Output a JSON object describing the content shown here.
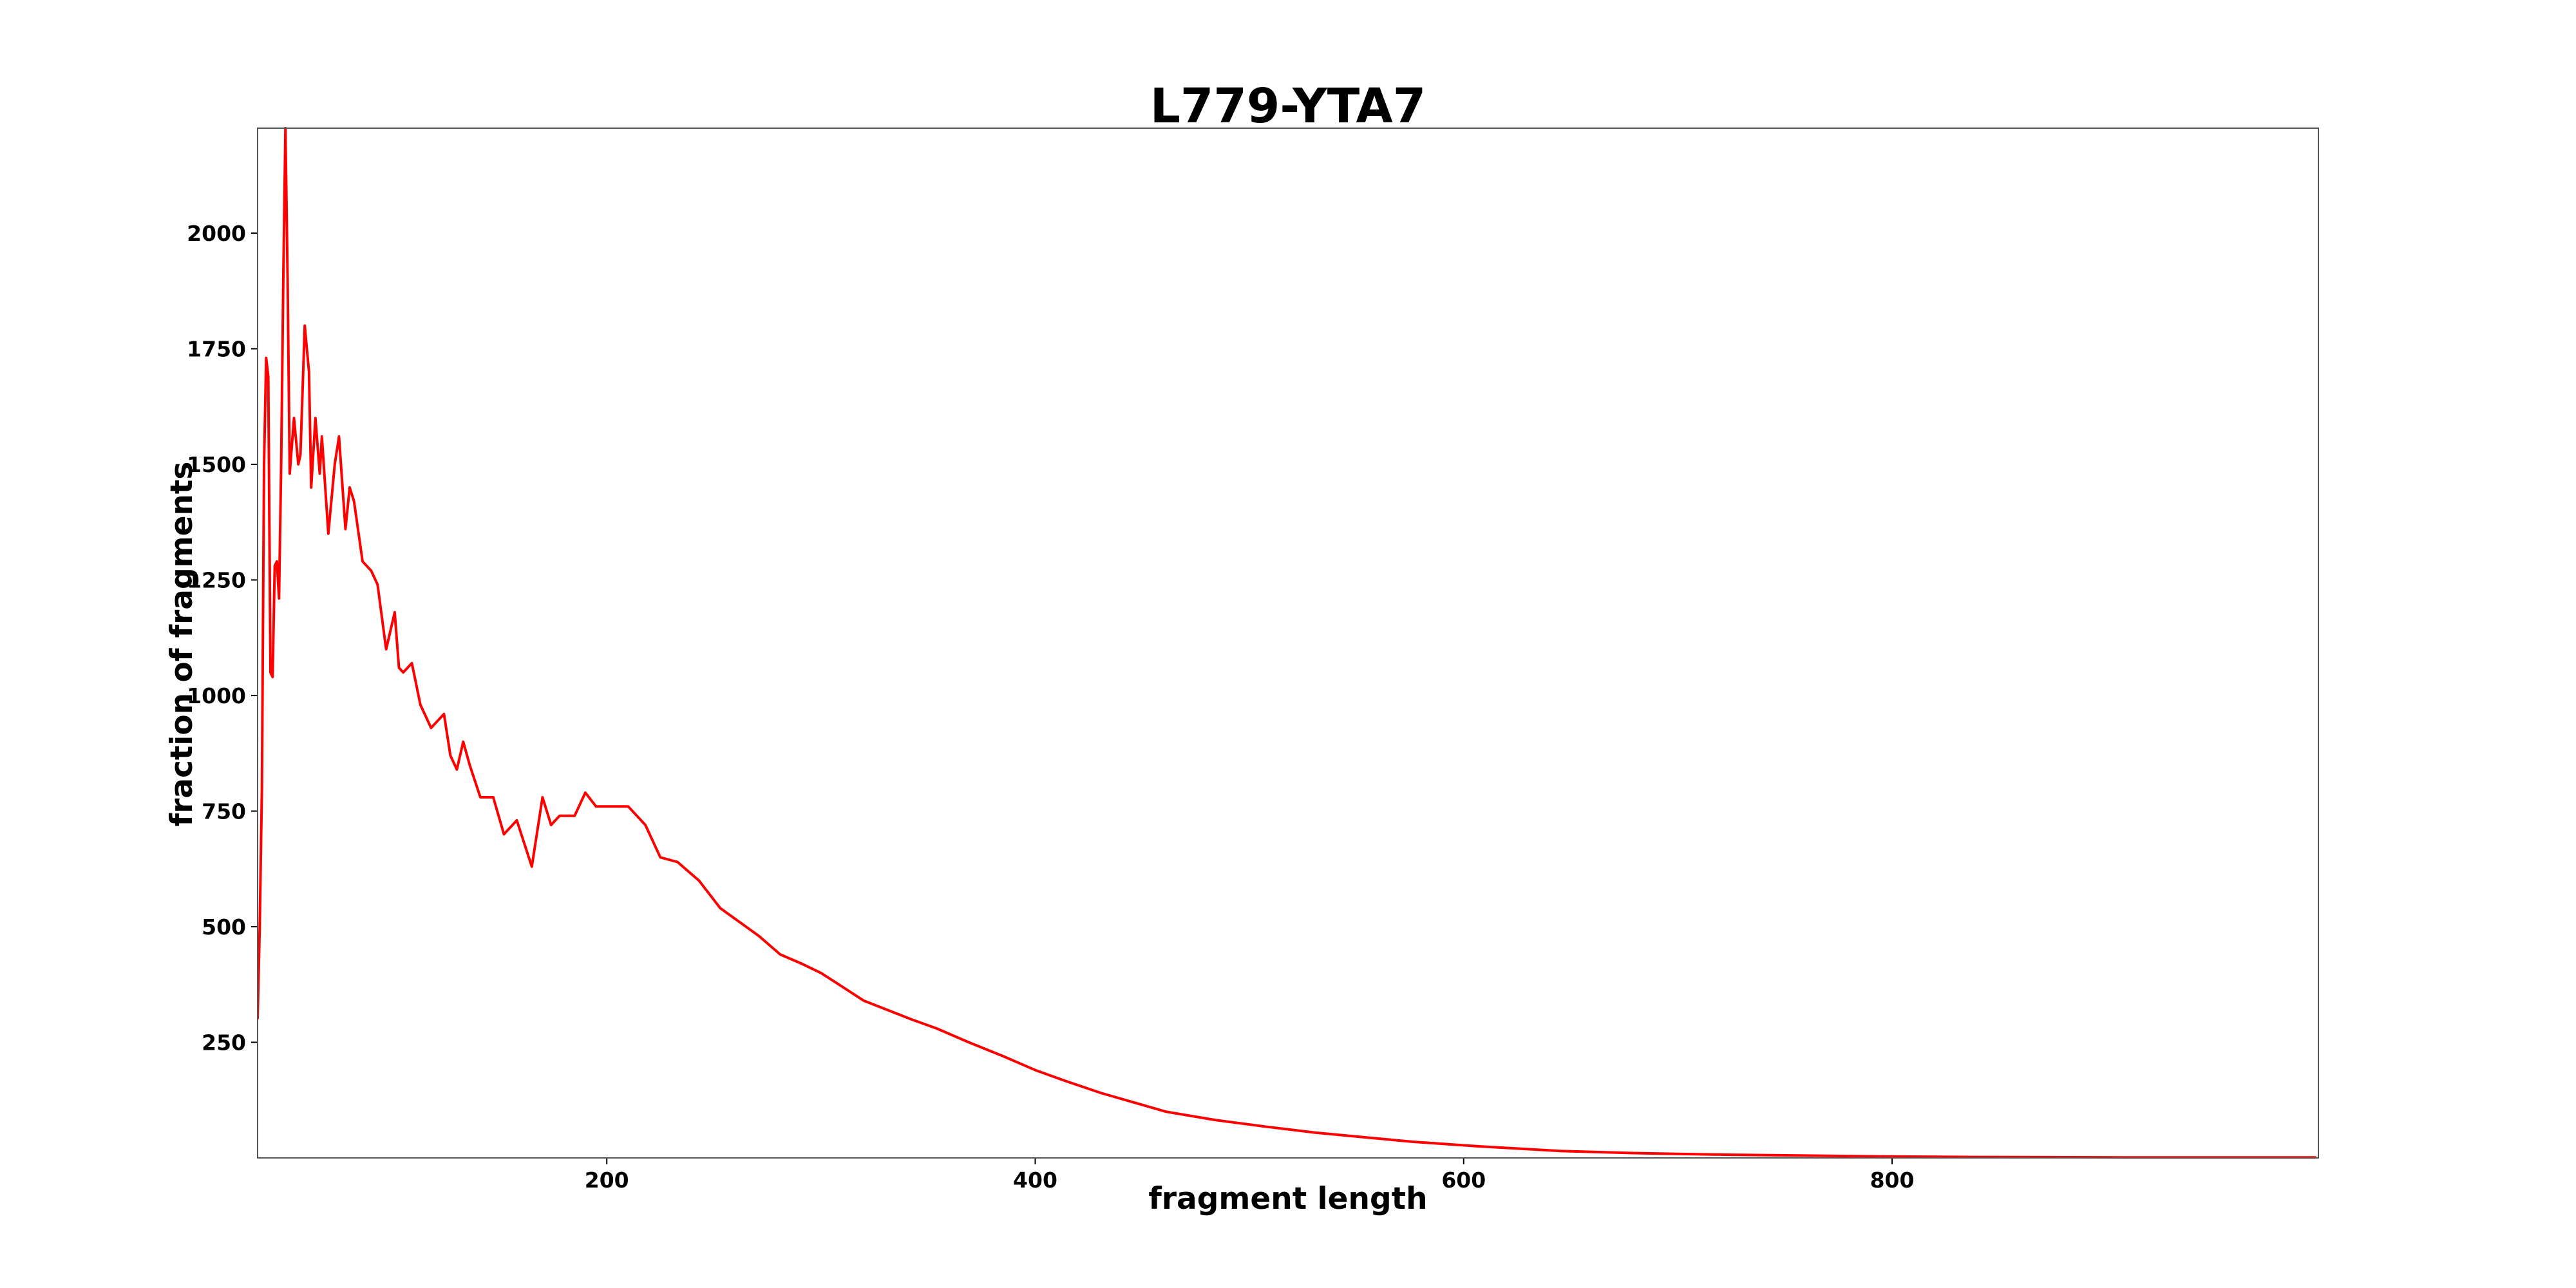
{
  "chart_data": {
    "type": "line",
    "title": "L779-YTA7",
    "x_label": "fragment length",
    "y_label": "fraction of fragments",
    "x": [
      37,
      38,
      39,
      40,
      41,
      42,
      43,
      44,
      45,
      46,
      47,
      48,
      49,
      50,
      51,
      52,
      54,
      56,
      57,
      59,
      61,
      62,
      64,
      66,
      67,
      70,
      73,
      75,
      78,
      80,
      82,
      86,
      90,
      93,
      97,
      101,
      103,
      105,
      109,
      113,
      118,
      124,
      127,
      130,
      133,
      136,
      141,
      147,
      152,
      158,
      165,
      170,
      174,
      178,
      185,
      190,
      195,
      202,
      210,
      218,
      225,
      233,
      243,
      253,
      262,
      271,
      281,
      291,
      300,
      310,
      320,
      331,
      342,
      354,
      369,
      385,
      400,
      415,
      431,
      446,
      461,
      484,
      507,
      530,
      553,
      576,
      607,
      645,
      683,
      722,
      760,
      798,
      837,
      913,
      998
    ],
    "series": [
      {
        "name": "L779-YTA7",
        "color": "#ff0000",
        "values": [
          300,
          500,
          800,
          1500,
          1730,
          1690,
          1050,
          1040,
          1280,
          1290,
          1210,
          1500,
          1900,
          2227,
          1900,
          1480,
          1600,
          1500,
          1520,
          1800,
          1700,
          1450,
          1600,
          1480,
          1560,
          1350,
          1500,
          1560,
          1360,
          1450,
          1420,
          1290,
          1270,
          1240,
          1100,
          1180,
          1060,
          1050,
          1070,
          980,
          930,
          960,
          870,
          840,
          900,
          850,
          780,
          780,
          700,
          730,
          630,
          780,
          720,
          740,
          740,
          790,
          760,
          760,
          760,
          720,
          650,
          640,
          600,
          540,
          510,
          480,
          440,
          420,
          400,
          370,
          340,
          320,
          300,
          280,
          250,
          220,
          190,
          165,
          140,
          120,
          100,
          82,
          68,
          55,
          45,
          35,
          25,
          15,
          10,
          7,
          5,
          3,
          2,
          1,
          1
        ]
      }
    ],
    "xlim": [
      37,
      999
    ],
    "ylim": [
      0,
      2227
    ],
    "xticks": [
      200,
      400,
      600,
      800
    ],
    "yticks": [
      250,
      500,
      750,
      1000,
      1250,
      1500,
      1750,
      2000
    ]
  }
}
